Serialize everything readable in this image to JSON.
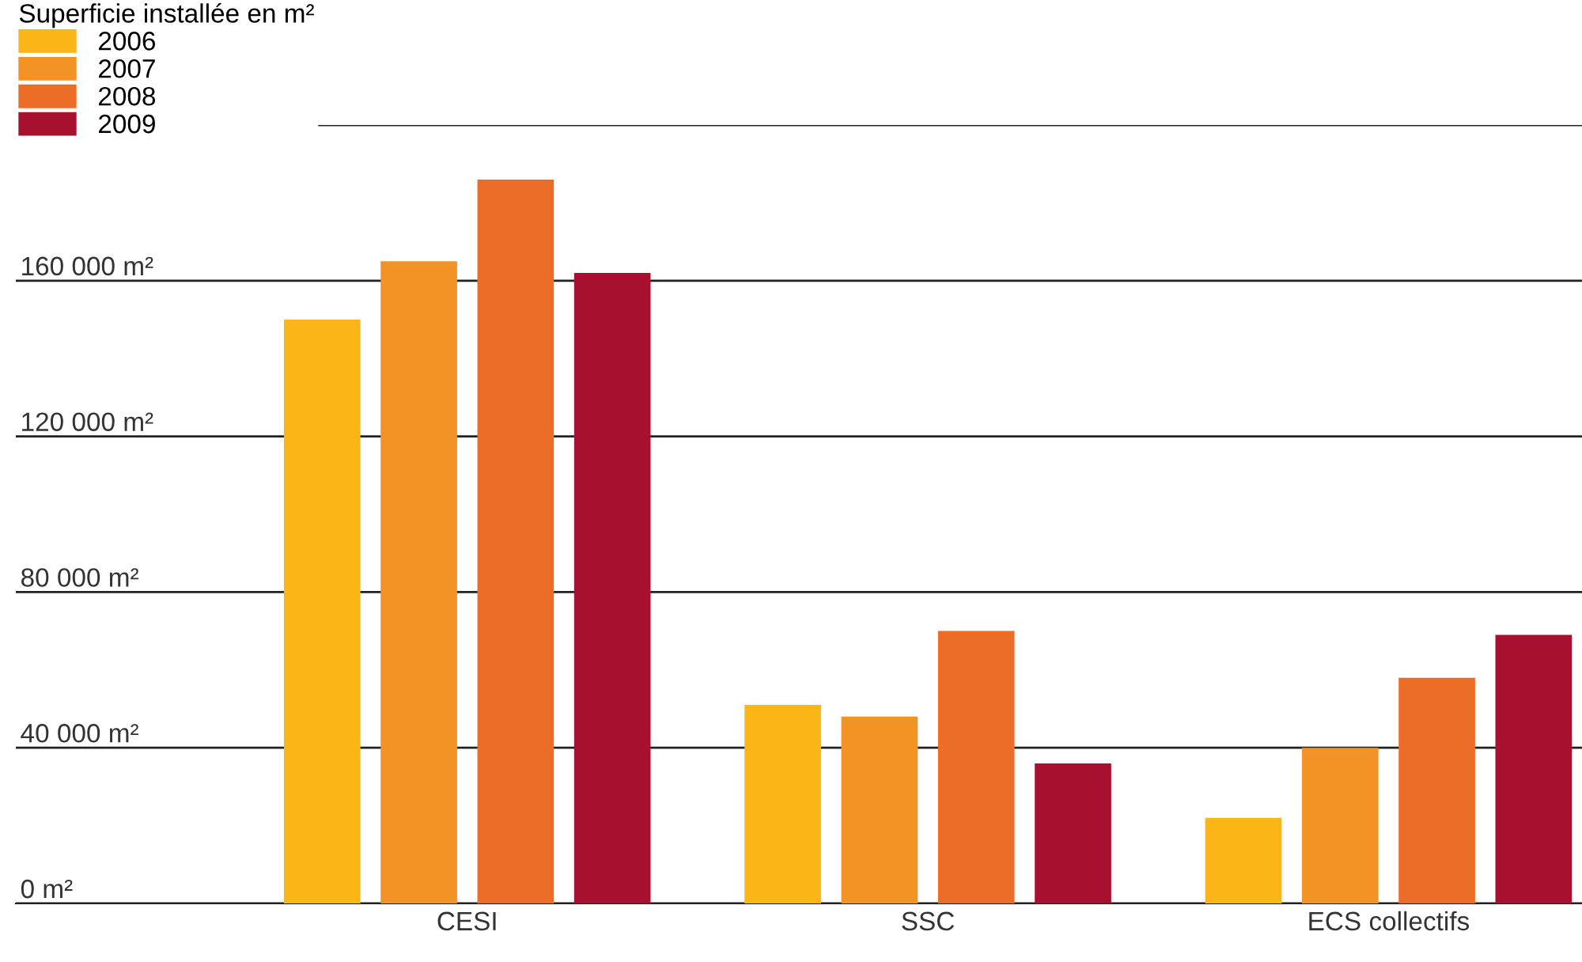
{
  "chart_data": {
    "type": "bar",
    "legend_title": "Superficie installée en m²",
    "categories": [
      "CESI",
      "SSC",
      "ECS collectifs"
    ],
    "series": [
      {
        "name": "2006",
        "color": "#fbb516",
        "values": [
          150000,
          51000,
          22000
        ]
      },
      {
        "name": "2007",
        "color": "#f39325",
        "values": [
          165000,
          48000,
          40000
        ]
      },
      {
        "name": "2008",
        "color": "#ec6d27",
        "values": [
          186000,
          70000,
          58000
        ]
      },
      {
        "name": "2009",
        "color": "#a8102f",
        "values": [
          162000,
          36000,
          69000
        ]
      }
    ],
    "ylim": [
      0,
      200000
    ],
    "yticks": [
      {
        "value": 0,
        "label": "0 m²"
      },
      {
        "value": 40000,
        "label": "40 000 m²"
      },
      {
        "value": 80000,
        "label": "80 000 m²"
      },
      {
        "value": 120000,
        "label": "120 000 m²"
      },
      {
        "value": 160000,
        "label": "160 000 m²"
      },
      {
        "value": 200000,
        "label": null
      }
    ],
    "grid": "y",
    "legend": "top left"
  }
}
